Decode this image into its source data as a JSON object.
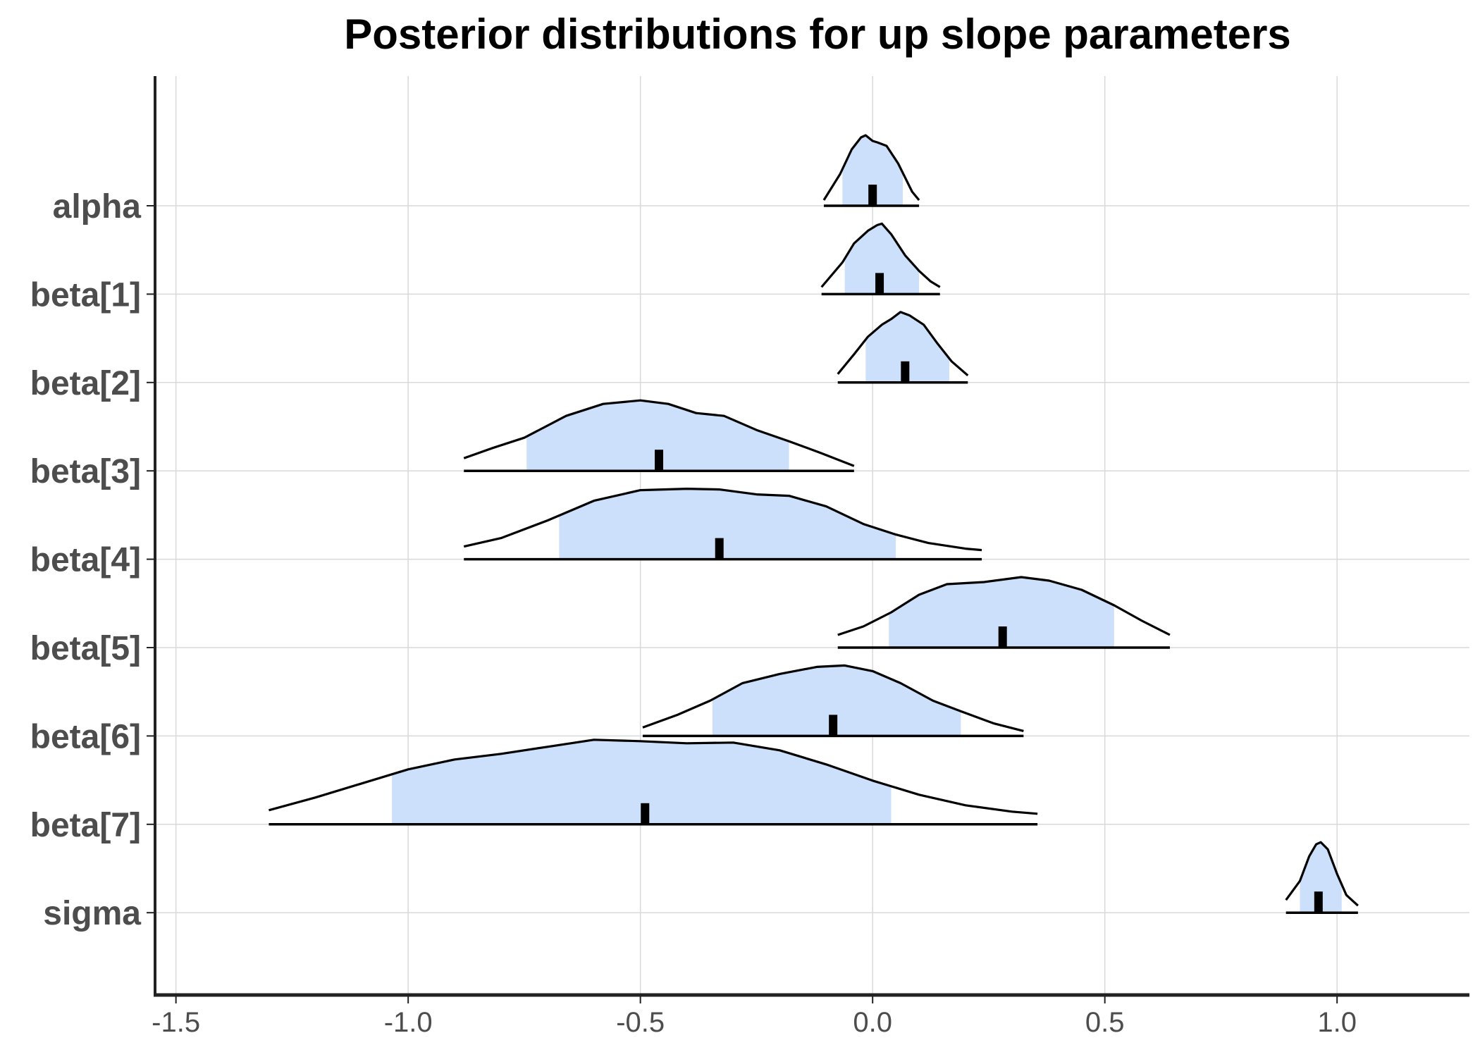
{
  "chart_data": {
    "type": "ridgeline",
    "title": "Posterior distributions for up slope parameters",
    "xlabel": "",
    "ylabel": "",
    "xlim": [
      -1.545,
      1.285
    ],
    "x_ticks": [
      -1.5,
      -1.0,
      -0.5,
      0.0,
      0.5,
      1.0
    ],
    "x_tick_labels": [
      "-1.5",
      "-1.0",
      "-0.5",
      "0.0",
      "0.5",
      "1.0"
    ],
    "grid": true,
    "colors": {
      "interval_fill": "#cce0fb",
      "line": "#000000",
      "grid": "#d9d9d9",
      "axis": "#222222",
      "tick_label": "#4d4d4d"
    },
    "parameters": [
      {
        "name": "alpha",
        "median": 0.0,
        "ci": [
          -0.065,
          0.065
        ],
        "range": [
          -0.105,
          0.1
        ],
        "density": [
          [
            -0.105,
            0.08
          ],
          [
            -0.07,
            0.45
          ],
          [
            -0.045,
            0.8
          ],
          [
            -0.025,
            0.97
          ],
          [
            -0.015,
            1.0
          ],
          [
            0.0,
            0.92
          ],
          [
            0.01,
            0.9
          ],
          [
            0.03,
            0.85
          ],
          [
            0.055,
            0.6
          ],
          [
            0.085,
            0.2
          ],
          [
            0.1,
            0.08
          ]
        ]
      },
      {
        "name": "beta[1]",
        "median": 0.015,
        "ci": [
          -0.06,
          0.1
        ],
        "range": [
          -0.11,
          0.145
        ],
        "density": [
          [
            -0.11,
            0.1
          ],
          [
            -0.065,
            0.45
          ],
          [
            -0.04,
            0.72
          ],
          [
            -0.01,
            0.9
          ],
          [
            0.01,
            0.98
          ],
          [
            0.02,
            1.0
          ],
          [
            0.04,
            0.85
          ],
          [
            0.07,
            0.55
          ],
          [
            0.1,
            0.33
          ],
          [
            0.125,
            0.18
          ],
          [
            0.145,
            0.1
          ]
        ]
      },
      {
        "name": "beta[2]",
        "median": 0.07,
        "ci": [
          -0.015,
          0.165
        ],
        "range": [
          -0.075,
          0.205
        ],
        "density": [
          [
            -0.075,
            0.12
          ],
          [
            -0.04,
            0.4
          ],
          [
            -0.01,
            0.65
          ],
          [
            0.02,
            0.82
          ],
          [
            0.04,
            0.9
          ],
          [
            0.06,
            1.0
          ],
          [
            0.08,
            0.95
          ],
          [
            0.11,
            0.82
          ],
          [
            0.14,
            0.55
          ],
          [
            0.17,
            0.3
          ],
          [
            0.205,
            0.1
          ]
        ]
      },
      {
        "name": "beta[3]",
        "median": -0.46,
        "ci": [
          -0.745,
          -0.18
        ],
        "range": [
          -0.88,
          -0.04
        ],
        "density": [
          [
            -0.88,
            0.18
          ],
          [
            -0.82,
            0.32
          ],
          [
            -0.75,
            0.47
          ],
          [
            -0.66,
            0.78
          ],
          [
            -0.58,
            0.95
          ],
          [
            -0.5,
            1.0
          ],
          [
            -0.44,
            0.95
          ],
          [
            -0.38,
            0.82
          ],
          [
            -0.32,
            0.78
          ],
          [
            -0.25,
            0.58
          ],
          [
            -0.18,
            0.42
          ],
          [
            -0.11,
            0.25
          ],
          [
            -0.04,
            0.07
          ]
        ]
      },
      {
        "name": "beta[4]",
        "median": -0.33,
        "ci": [
          -0.675,
          0.05
        ],
        "range": [
          -0.88,
          0.235
        ],
        "density": [
          [
            -0.88,
            0.18
          ],
          [
            -0.8,
            0.3
          ],
          [
            -0.7,
            0.55
          ],
          [
            -0.6,
            0.83
          ],
          [
            -0.5,
            0.98
          ],
          [
            -0.4,
            1.0
          ],
          [
            -0.33,
            0.99
          ],
          [
            -0.25,
            0.92
          ],
          [
            -0.18,
            0.9
          ],
          [
            -0.1,
            0.75
          ],
          [
            -0.02,
            0.5
          ],
          [
            0.05,
            0.35
          ],
          [
            0.12,
            0.23
          ],
          [
            0.2,
            0.15
          ],
          [
            0.235,
            0.13
          ]
        ]
      },
      {
        "name": "beta[5]",
        "median": 0.28,
        "ci": [
          0.035,
          0.52
        ],
        "range": [
          -0.075,
          0.64
        ],
        "density": [
          [
            -0.075,
            0.18
          ],
          [
            -0.02,
            0.3
          ],
          [
            0.04,
            0.5
          ],
          [
            0.1,
            0.75
          ],
          [
            0.16,
            0.9
          ],
          [
            0.24,
            0.93
          ],
          [
            0.32,
            1.0
          ],
          [
            0.38,
            0.95
          ],
          [
            0.45,
            0.82
          ],
          [
            0.52,
            0.6
          ],
          [
            0.58,
            0.38
          ],
          [
            0.64,
            0.18
          ]
        ]
      },
      {
        "name": "beta[6]",
        "median": -0.085,
        "ci": [
          -0.345,
          0.19
        ],
        "range": [
          -0.495,
          0.325
        ],
        "density": [
          [
            -0.495,
            0.12
          ],
          [
            -0.42,
            0.3
          ],
          [
            -0.35,
            0.5
          ],
          [
            -0.28,
            0.75
          ],
          [
            -0.2,
            0.88
          ],
          [
            -0.12,
            0.98
          ],
          [
            -0.06,
            1.0
          ],
          [
            0.0,
            0.92
          ],
          [
            0.06,
            0.75
          ],
          [
            0.13,
            0.5
          ],
          [
            0.19,
            0.35
          ],
          [
            0.26,
            0.18
          ],
          [
            0.325,
            0.07
          ]
        ]
      },
      {
        "name": "beta[7]",
        "median": -0.49,
        "ci": [
          -1.035,
          0.04
        ],
        "range": [
          -1.3,
          0.355
        ],
        "density": [
          [
            -1.3,
            0.2
          ],
          [
            -1.2,
            0.38
          ],
          [
            -1.1,
            0.58
          ],
          [
            -1.0,
            0.78
          ],
          [
            -0.9,
            0.92
          ],
          [
            -0.8,
            1.0
          ],
          [
            -0.7,
            1.1
          ],
          [
            -0.6,
            1.2
          ],
          [
            -0.5,
            1.18
          ],
          [
            -0.4,
            1.15
          ],
          [
            -0.3,
            1.16
          ],
          [
            -0.2,
            1.05
          ],
          [
            -0.1,
            0.85
          ],
          [
            0.0,
            0.62
          ],
          [
            0.1,
            0.42
          ],
          [
            0.2,
            0.27
          ],
          [
            0.3,
            0.18
          ],
          [
            0.355,
            0.15
          ]
        ]
      },
      {
        "name": "sigma",
        "median": 0.96,
        "ci": [
          0.92,
          1.01
        ],
        "range": [
          0.89,
          1.045
        ],
        "density": [
          [
            0.89,
            0.18
          ],
          [
            0.92,
            0.45
          ],
          [
            0.94,
            0.8
          ],
          [
            0.955,
            0.97
          ],
          [
            0.965,
            1.0
          ],
          [
            0.98,
            0.9
          ],
          [
            1.0,
            0.55
          ],
          [
            1.02,
            0.25
          ],
          [
            1.045,
            0.1
          ]
        ]
      }
    ]
  }
}
